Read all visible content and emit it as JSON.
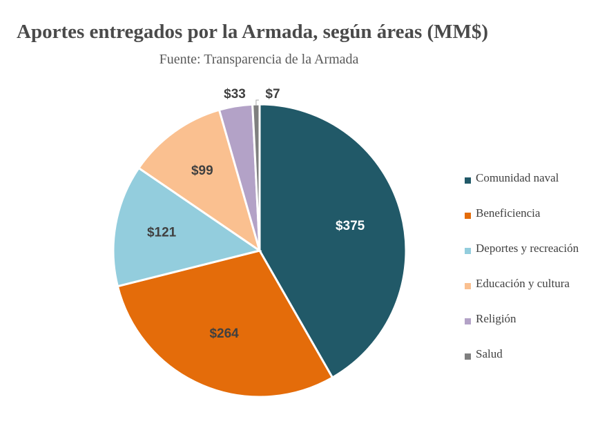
{
  "title": "Aportes entregados por la Armada, según áreas (MM$)",
  "subtitle": "Fuente: Transparencia de la Armada",
  "chart_data": {
    "type": "pie",
    "title": "Aportes entregados por la Armada, según áreas (MM$)",
    "subtitle": "Fuente: Transparencia de la Armada",
    "legend_position": "right",
    "slices": [
      {
        "label": "Comunidad naval",
        "value": 375,
        "display": "$375",
        "color": "#215968",
        "label_color": "#ffffff"
      },
      {
        "label": "Beneficiencia",
        "value": 264,
        "display": "$264",
        "color": "#E46C0A",
        "label_color": "#404040"
      },
      {
        "label": "Deportes y recreación",
        "value": 121,
        "display": "$121",
        "color": "#93CDDD",
        "label_color": "#404040"
      },
      {
        "label": "Educación y cultura",
        "value": 99,
        "display": "$99",
        "color": "#FAC090",
        "label_color": "#404040"
      },
      {
        "label": "Religión",
        "value": 33,
        "display": "$33",
        "color": "#B3A2C7",
        "label_color": "#404040"
      },
      {
        "label": "Salud",
        "value": 7,
        "display": "$7",
        "color": "#7F7F7F",
        "label_color": "#404040"
      }
    ]
  }
}
